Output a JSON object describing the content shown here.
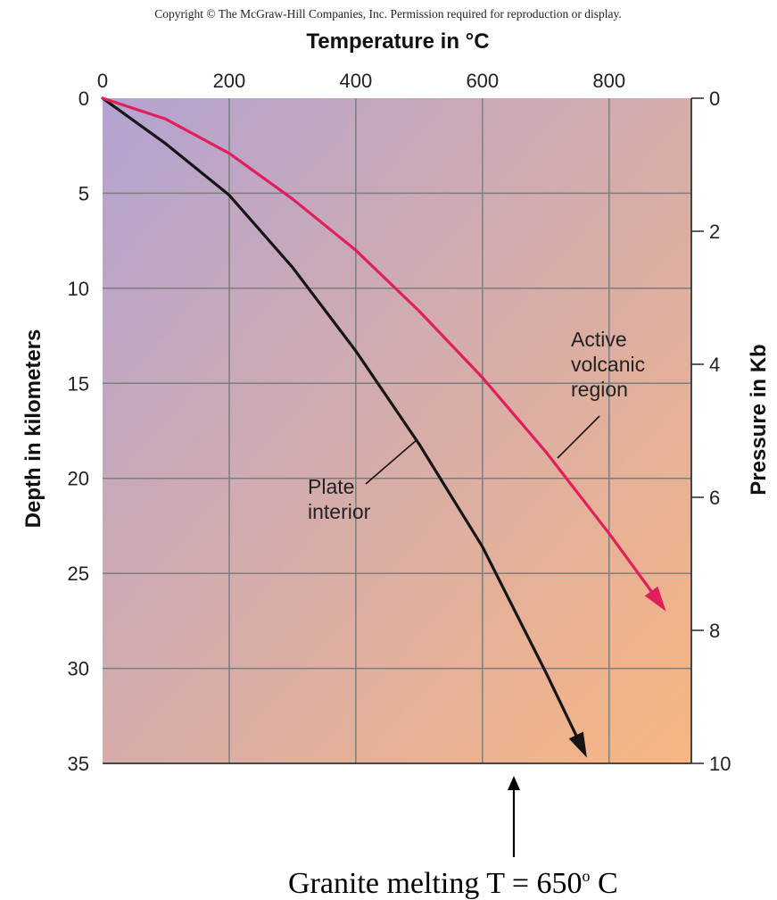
{
  "copyright": "Copyright © The McGraw-Hill Companies, Inc. Permission required for reproduction or display.",
  "caption": {
    "before": "Granite melting T = 650",
    "superscript": "o",
    "after": " C"
  },
  "colors": {
    "gradient_top_left": "#b3a3d2",
    "gradient_bottom_right": "#f8b682",
    "grid": "#7d7d7d",
    "plate_interior": "#151515",
    "active_volcanic": "#e01f5c"
  },
  "chart_data": {
    "type": "line",
    "xlabel": "Temperature in °C",
    "ylabel": "Depth in kilometers",
    "y2label": "Pressure in Kb",
    "x_axis_position": "top",
    "y_inverted": true,
    "xlim": [
      0,
      930
    ],
    "ylim": [
      0,
      35
    ],
    "y2lim": [
      0,
      10
    ],
    "x_ticks": [
      "0",
      "200",
      "400",
      "600",
      "800"
    ],
    "y_ticks": [
      "0",
      "5",
      "10",
      "15",
      "20",
      "25",
      "30",
      "35"
    ],
    "y2_ticks": [
      "0",
      "2",
      "4",
      "6",
      "8",
      "10"
    ],
    "grid": true,
    "series": [
      {
        "name": "Plate interior",
        "label_lines": [
          "Plate",
          "interior"
        ],
        "color": "#151515",
        "x": [
          0,
          100,
          200,
          300,
          400,
          500,
          600,
          700,
          765
        ],
        "y": [
          0,
          2.4,
          5.1,
          8.9,
          13.3,
          18.2,
          23.6,
          30.2,
          34.7
        ]
      },
      {
        "name": "Active volcanic region",
        "label_lines": [
          "Active",
          "volcanic",
          "region"
        ],
        "color": "#e01f5c",
        "x": [
          0,
          100,
          200,
          300,
          400,
          500,
          600,
          700,
          800,
          890
        ],
        "y": [
          0,
          1.1,
          2.9,
          5.3,
          8.0,
          11.2,
          14.7,
          18.6,
          22.9,
          27.0
        ]
      }
    ],
    "annotations": [
      {
        "type": "arrow",
        "x": 650,
        "text": "Granite melting T = 650o C"
      }
    ]
  }
}
